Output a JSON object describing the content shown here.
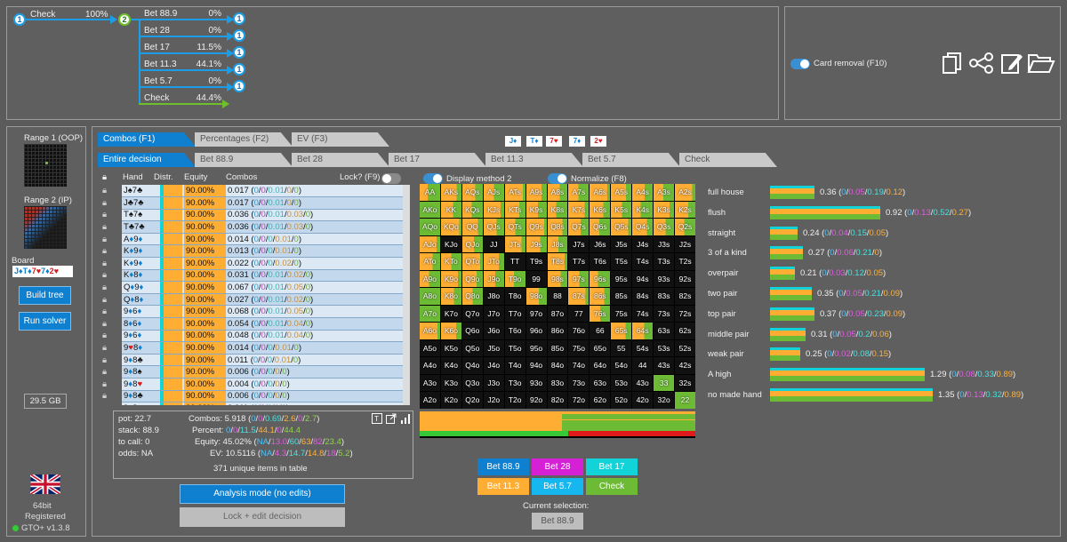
{
  "tree": {
    "root_node": "1",
    "root_action": "Check",
    "root_pct": "100%",
    "mid_node": "2",
    "leaf_nodes": [
      "1",
      "1",
      "1",
      "1",
      "1"
    ],
    "branches": [
      {
        "label": "Bet 88.9",
        "pct": "0%"
      },
      {
        "label": "Bet 28",
        "pct": "0%"
      },
      {
        "label": "Bet 17",
        "pct": "11.5%"
      },
      {
        "label": "Bet 11.3",
        "pct": "44.1%"
      },
      {
        "label": "Bet 5.7",
        "pct": "0%"
      },
      {
        "label": "Check",
        "pct": "44.4%"
      }
    ]
  },
  "top_right": {
    "card_removal_label": "Card removal (F10)"
  },
  "left": {
    "range1_label": "Range 1 (OOP)",
    "range2_label": "Range 2 (IP)",
    "board_label": "Board",
    "board_cards": [
      {
        "rank": "J",
        "suit": "♦",
        "color": "blue"
      },
      {
        "rank": "T",
        "suit": "♦",
        "color": "blue"
      },
      {
        "rank": "7",
        "suit": "♥",
        "color": "red"
      },
      {
        "rank": "7",
        "suit": "♦",
        "color": "blue"
      },
      {
        "rank": "2",
        "suit": "♥",
        "color": "red"
      }
    ],
    "build_tree": "Build tree",
    "run_solver": "Run solver",
    "memory": "29.5 GB",
    "bitness": "64bit",
    "registered": "Registered",
    "version": "GTO+ v1.3.8"
  },
  "tabs_row1": [
    "Combos (F1)",
    "Percentages (F2)",
    "EV (F3)"
  ],
  "tabs_row2": [
    "Entire decision",
    "Bet 88.9",
    "Bet 28",
    "Bet 17",
    "Bet 11.3",
    "Bet 5.7",
    "Check"
  ],
  "board_cards_top": [
    {
      "text": "J♦",
      "red": false
    },
    {
      "text": "T♦",
      "red": false
    },
    {
      "text": "7♥",
      "red": true
    },
    {
      "text": "7♦",
      "red": false
    },
    {
      "text": "2♥",
      "red": true
    }
  ],
  "table": {
    "headers": {
      "hand": "Hand",
      "distr": "Distr.",
      "equity": "Equity",
      "combos": "Combos",
      "lock": "Lock? (F9)"
    },
    "rows": [
      {
        "hand": "J♠7♣",
        "equity": "90.00%",
        "combos": "0.017",
        "detail": [
          "0",
          "0",
          "0.01",
          "0",
          "0"
        ]
      },
      {
        "hand": "J♣7♣",
        "equity": "90.00%",
        "combos": "0.017",
        "detail": [
          "0",
          "0",
          "0.01",
          "0",
          "0"
        ]
      },
      {
        "hand": "T♠7♠",
        "equity": "90.00%",
        "combos": "0.036",
        "detail": [
          "0",
          "0",
          "0.01",
          "0.03",
          "0"
        ]
      },
      {
        "hand": "T♣7♣",
        "equity": "90.00%",
        "combos": "0.036",
        "detail": [
          "0",
          "0",
          "0.01",
          "0.03",
          "0"
        ]
      },
      {
        "hand": "A♦9♦",
        "equity": "90.00%",
        "combos": "0.014",
        "detail": [
          "0",
          "0",
          "0",
          "0.01",
          "0"
        ]
      },
      {
        "hand": "K♦9♦",
        "equity": "90.00%",
        "combos": "0.013",
        "detail": [
          "0",
          "0",
          "0",
          "0.01",
          "0"
        ]
      },
      {
        "hand": "K♦9♦",
        "equity": "90.00%",
        "combos": "0.022",
        "detail": [
          "0",
          "0",
          "0",
          "0.02",
          "0"
        ]
      },
      {
        "hand": "K♦8♦",
        "equity": "90.00%",
        "combos": "0.031",
        "detail": [
          "0",
          "0",
          "0.01",
          "0.02",
          "0"
        ]
      },
      {
        "hand": "Q♦9♦",
        "equity": "90.00%",
        "combos": "0.067",
        "detail": [
          "0",
          "0",
          "0.01",
          "0.05",
          "0"
        ]
      },
      {
        "hand": "Q♦8♦",
        "equity": "90.00%",
        "combos": "0.027",
        "detail": [
          "0",
          "0",
          "0.01",
          "0.02",
          "0"
        ]
      },
      {
        "hand": "9♦6♦",
        "equity": "90.00%",
        "combos": "0.068",
        "detail": [
          "0",
          "0",
          "0.01",
          "0.05",
          "0"
        ]
      },
      {
        "hand": "8♦6♦",
        "equity": "90.00%",
        "combos": "0.054",
        "detail": [
          "0",
          "0",
          "0.01",
          "0.04",
          "0"
        ]
      },
      {
        "hand": "9♦6♦",
        "equity": "90.00%",
        "combos": "0.048",
        "detail": [
          "0",
          "0",
          "0.01",
          "0.04",
          "0"
        ]
      },
      {
        "hand": "9♥8♦",
        "equity": "90.00%",
        "combos": "0.014",
        "detail": [
          "0",
          "0",
          "0",
          "0.01",
          "0"
        ]
      },
      {
        "hand": "9♦8♣",
        "equity": "90.00%",
        "combos": "0.011",
        "detail": [
          "0",
          "0",
          "0",
          "0.01",
          "0"
        ]
      },
      {
        "hand": "9♦8♠",
        "equity": "90.00%",
        "combos": "0.006",
        "detail": [
          "0",
          "0",
          "0",
          "0",
          "0"
        ]
      },
      {
        "hand": "9♦8♥",
        "equity": "90.00%",
        "combos": "0.004",
        "detail": [
          "0",
          "0",
          "0",
          "0",
          "0"
        ]
      },
      {
        "hand": "9♦8♣",
        "equity": "90.00%",
        "combos": "0.006",
        "detail": [
          "0",
          "0",
          "0",
          "0",
          "0"
        ]
      },
      {
        "hand": "9♦8♣",
        "equity": "90.00%",
        "combos": "0.011",
        "detail": [
          "0",
          "0",
          "0",
          "0",
          "0"
        ]
      }
    ]
  },
  "toggles": {
    "display_method": "Display method 2",
    "normalize": "Normalize (F8)"
  },
  "hand_grid": [
    "AA",
    "AKs",
    "AQs",
    "AJs",
    "ATs",
    "A9s",
    "A8s",
    "A7s",
    "A6s",
    "A5s",
    "A4s",
    "A3s",
    "A2s",
    "AKo",
    "KK",
    "KQs",
    "KJs",
    "KTs",
    "K9s",
    "K8s",
    "K7s",
    "K6s",
    "K5s",
    "K4s",
    "K3s",
    "K2s",
    "AQo",
    "KQo",
    "QQ",
    "QJs",
    "QTs",
    "Q9s",
    "Q8s",
    "Q7s",
    "Q6s",
    "Q5s",
    "Q4s",
    "Q3s",
    "Q2s",
    "AJo",
    "KJo",
    "QJo",
    "JJ",
    "JTs",
    "J9s",
    "J8s",
    "J7s",
    "J6s",
    "J5s",
    "J4s",
    "J3s",
    "J2s",
    "ATo",
    "KTo",
    "QTo",
    "JTo",
    "TT",
    "T9s",
    "T8s",
    "T7s",
    "T6s",
    "T5s",
    "T4s",
    "T3s",
    "T2s",
    "A9o",
    "K9o",
    "Q9o",
    "J9o",
    "T9o",
    "99",
    "98s",
    "97s",
    "96s",
    "95s",
    "94s",
    "93s",
    "92s",
    "A8o",
    "K8o",
    "Q8o",
    "J8o",
    "T8o",
    "98o",
    "88",
    "87s",
    "86s",
    "85s",
    "84s",
    "83s",
    "82s",
    "A7o",
    "K7o",
    "Q7o",
    "J7o",
    "T7o",
    "97o",
    "87o",
    "77",
    "76s",
    "75s",
    "74s",
    "73s",
    "72s",
    "A6o",
    "K6o",
    "Q6o",
    "J6o",
    "T6o",
    "96o",
    "86o",
    "76o",
    "66",
    "65s",
    "64s",
    "63s",
    "62s",
    "A5o",
    "K5o",
    "Q5o",
    "J5o",
    "T5o",
    "95o",
    "85o",
    "75o",
    "65o",
    "55",
    "54s",
    "53s",
    "52s",
    "A4o",
    "K4o",
    "Q4o",
    "J4o",
    "T4o",
    "94o",
    "84o",
    "74o",
    "64o",
    "54o",
    "44",
    "43s",
    "42s",
    "A3o",
    "K3o",
    "Q3o",
    "J3o",
    "T3o",
    "93o",
    "83o",
    "73o",
    "63o",
    "53o",
    "43o",
    "33",
    "32s",
    "A2o",
    "K2o",
    "Q2o",
    "J2o",
    "T2o",
    "92o",
    "82o",
    "72o",
    "62o",
    "52o",
    "42o",
    "32o",
    "22"
  ],
  "info": {
    "pot": "pot: 22.7",
    "stack": "stack: 88.9",
    "to_call": "to call: 0",
    "odds": "odds: NA",
    "combos_label": "Combos:",
    "combos_total": "5.918",
    "combos_parts": [
      "0",
      "0",
      "0.69",
      "2.6",
      "0",
      "2.7"
    ],
    "percent_label": "Percent:",
    "percent_parts": [
      "0",
      "0",
      "11.5",
      "44.1",
      "0",
      "44.4"
    ],
    "equity_label": "Equity:",
    "equity_total": "45.02%",
    "equity_parts": [
      "NA",
      "13.0",
      "60",
      "63",
      "82",
      "23.4"
    ],
    "ev_label": "EV:",
    "ev_total": "10.5116",
    "ev_parts": [
      "NA",
      "4.3",
      "14.7",
      "14.8",
      "18",
      "5.2"
    ],
    "unique_items": "371 unique items in table"
  },
  "analysis_mode": "Analysis mode (no edits)",
  "lock_edit": "Lock + edit decision",
  "action_buttons": [
    {
      "label": "Bet 88.9",
      "color": "#0f7fcf"
    },
    {
      "label": "Bet 28",
      "color": "#d620d6"
    },
    {
      "label": "Bet 17",
      "color": "#12d4d8"
    },
    {
      "label": "Bet 11.3",
      "color": "#ffad33"
    },
    {
      "label": "Bet 5.7",
      "color": "#16b6ee"
    },
    {
      "label": "Check",
      "color": "#6dbb35"
    }
  ],
  "current_selection_label": "Current selection:",
  "current_selection_value": "Bet 88.9",
  "categories": [
    {
      "name": "full house",
      "value": "0.36",
      "parts": [
        "0",
        "0.05",
        "0.19",
        "0.12"
      ],
      "frac": 0.16
    },
    {
      "name": "flush",
      "value": "0.92",
      "parts": [
        "0",
        "0.13",
        "0.52",
        "0.27"
      ],
      "frac": 0.4
    },
    {
      "name": "straight",
      "value": "0.24",
      "parts": [
        "0",
        "0.04",
        "0.15",
        "0.05"
      ],
      "frac": 0.1
    },
    {
      "name": "3 of a kind",
      "value": "0.27",
      "parts": [
        "0",
        "0.06",
        "0.21",
        "0"
      ],
      "frac": 0.12
    },
    {
      "name": "overpair",
      "value": "0.21",
      "parts": [
        "0",
        "0.03",
        "0.12",
        "0.05"
      ],
      "frac": 0.09
    },
    {
      "name": "two pair",
      "value": "0.35",
      "parts": [
        "0",
        "0.05",
        "0.21",
        "0.09"
      ],
      "frac": 0.15
    },
    {
      "name": "top pair",
      "value": "0.37",
      "parts": [
        "0",
        "0.05",
        "0.23",
        "0.09"
      ],
      "frac": 0.16
    },
    {
      "name": "middle pair",
      "value": "0.31",
      "parts": [
        "0",
        "0.05",
        "0.2",
        "0.06"
      ],
      "frac": 0.13
    },
    {
      "name": "weak pair",
      "value": "0.25",
      "parts": [
        "0",
        "0.02",
        "0.08",
        "0.15"
      ],
      "frac": 0.11
    },
    {
      "name": "A high",
      "value": "1.29",
      "parts": [
        "0",
        "0.08",
        "0.33",
        "0.89"
      ],
      "frac": 0.56
    },
    {
      "name": "no made hand",
      "value": "1.35",
      "parts": [
        "0",
        "0.13",
        "0.32",
        "0.89"
      ],
      "frac": 0.59
    }
  ]
}
